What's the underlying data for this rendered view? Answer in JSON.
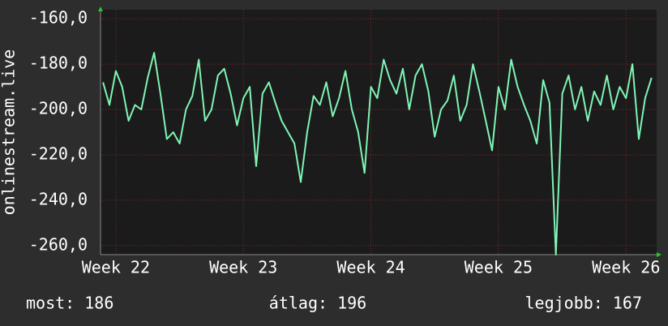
{
  "chart_data": {
    "type": "line",
    "ylabel": "onlinestream.live",
    "ylim": [
      -264,
      -156
    ],
    "yticks": [
      {
        "value": -160,
        "label": "-160,0"
      },
      {
        "value": -180,
        "label": "-180,0"
      },
      {
        "value": -200,
        "label": "-200,0"
      },
      {
        "value": -220,
        "label": "-220,0"
      },
      {
        "value": -240,
        "label": "-240,0"
      },
      {
        "value": -260,
        "label": "-260,0"
      }
    ],
    "xlim": [
      21.88,
      26.24
    ],
    "xticks": [
      {
        "value": 22,
        "label": "Week 22"
      },
      {
        "value": 23,
        "label": "Week 23"
      },
      {
        "value": 24,
        "label": "Week 24"
      },
      {
        "value": 25,
        "label": "Week 25"
      },
      {
        "value": 26,
        "label": "Week 26"
      }
    ],
    "grid": true,
    "x": [
      21.9,
      21.95,
      22,
      22.05,
      22.1,
      22.15,
      22.2,
      22.25,
      22.3,
      22.35,
      22.4,
      22.45,
      22.5,
      22.55,
      22.6,
      22.65,
      22.7,
      22.75,
      22.8,
      22.85,
      22.9,
      22.95,
      23,
      23.05,
      23.1,
      23.15,
      23.2,
      23.25,
      23.3,
      23.35,
      23.4,
      23.45,
      23.5,
      23.55,
      23.6,
      23.65,
      23.7,
      23.75,
      23.8,
      23.85,
      23.9,
      23.95,
      24,
      24.05,
      24.1,
      24.15,
      24.2,
      24.25,
      24.3,
      24.35,
      24.4,
      24.45,
      24.5,
      24.55,
      24.6,
      24.65,
      24.7,
      24.75,
      24.8,
      24.85,
      24.9,
      24.95,
      25,
      25.05,
      25.1,
      25.15,
      25.2,
      25.25,
      25.3,
      25.35,
      25.4,
      25.45,
      25.5,
      25.55,
      25.6,
      25.65,
      25.7,
      25.75,
      25.8,
      25.85,
      25.9,
      25.95,
      26,
      26.05,
      26.1,
      26.15,
      26.2
    ],
    "series": [
      {
        "color": "#7ff5b5",
        "values": [
          -188,
          -198,
          -183,
          -190,
          -205,
          -198,
          -200,
          -186,
          -175,
          -193,
          -213,
          -210,
          -215,
          -200,
          -194,
          -178,
          -205,
          -200,
          -185,
          -182,
          -193,
          -207,
          -195,
          -190,
          -225,
          -193,
          -188,
          -197,
          -205,
          -210,
          -215,
          -232,
          -210,
          -194,
          -198,
          -188,
          -203,
          -195,
          -183,
          -200,
          -210,
          -228,
          -190,
          -195,
          -178,
          -187,
          -193,
          -182,
          -200,
          -185,
          -180,
          -192,
          -212,
          -200,
          -196,
          -185,
          -205,
          -198,
          -180,
          -192,
          -205,
          -218,
          -190,
          -200,
          -178,
          -190,
          -198,
          -205,
          -215,
          -187,
          -197,
          -264,
          -193,
          -185,
          -200,
          -190,
          -205,
          -192,
          -198,
          -185,
          -200,
          -190,
          -195,
          -180,
          -213,
          -195,
          -186
        ]
      }
    ]
  },
  "footer": {
    "current": "most: 186",
    "average": "átlag: 196",
    "best": "legjobb: 167"
  }
}
